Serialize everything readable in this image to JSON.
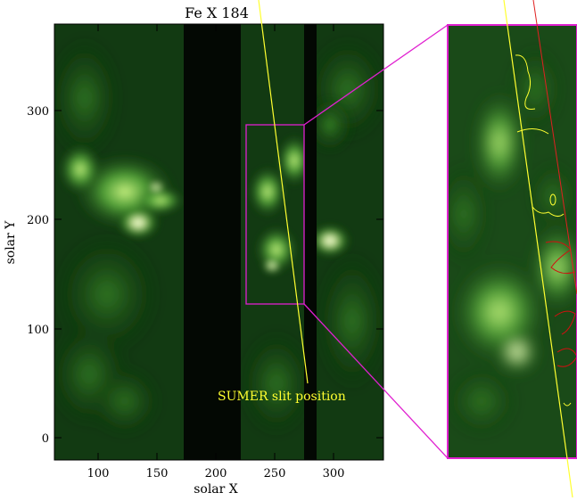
{
  "figure": {
    "title": "Fe X 184",
    "xlabel": "solar X",
    "ylabel": "solar Y",
    "x_ticks": [
      "100",
      "150",
      "200",
      "250",
      "300"
    ],
    "y_ticks": [
      "0",
      "100",
      "200",
      "300"
    ],
    "annotation": "SUMER slit position",
    "colors": {
      "magenta": "#e020d0",
      "slit": "#ffff30",
      "contour_yellow": "#ffff30",
      "contour_red": "#d01010",
      "red_line": "#e02020"
    }
  }
}
